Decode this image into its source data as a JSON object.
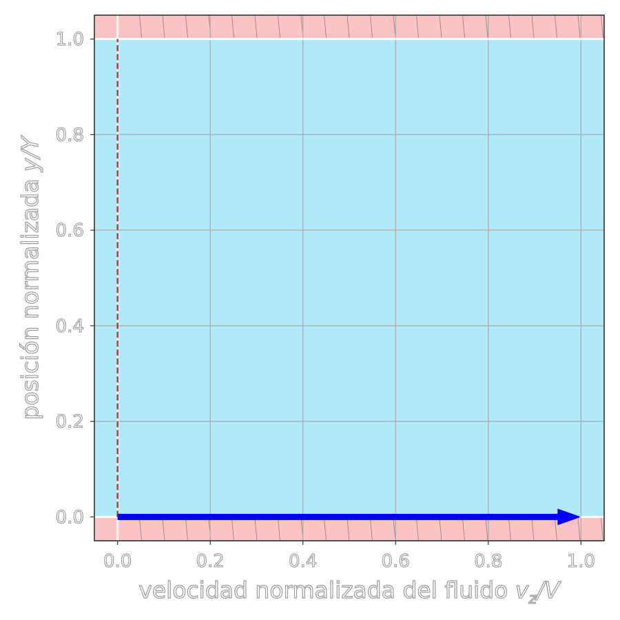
{
  "chart_data": {
    "type": "line",
    "xlabel": "velocidad normalizada del fluido",
    "xlabel_math": {
      "var": "v",
      "sub": "z",
      "rest": "/V"
    },
    "ylabel": "posición normalizada",
    "ylabel_math": "y/Y",
    "xlim": [
      -0.05,
      1.05
    ],
    "ylim": [
      -0.05,
      1.05
    ],
    "x_ticks": [
      "0.0",
      "0.2",
      "0.4",
      "0.6",
      "0.8",
      "1.0"
    ],
    "y_ticks": [
      "0.0",
      "0.2",
      "0.4",
      "0.6",
      "0.8",
      "1.0"
    ],
    "grid": true,
    "colors": {
      "fluid": "#b0eaf9",
      "walls": "#fcc3c4",
      "profile": "#d62728",
      "arrow": "#0000ff",
      "grid": "#b0b0b0"
    },
    "series": [
      {
        "x": [
          0.0,
          0.0
        ],
        "y": [
          0.0,
          1.0
        ],
        "style": "dashed"
      }
    ],
    "arrow": {
      "x_start": 0.0,
      "x_end": 1.0,
      "y": 0.0
    },
    "regions": {
      "fluid": [
        0.0,
        1.0
      ],
      "bottom_wall": [
        -0.05,
        0.0
      ],
      "top_wall": [
        1.0,
        1.05
      ]
    }
  }
}
